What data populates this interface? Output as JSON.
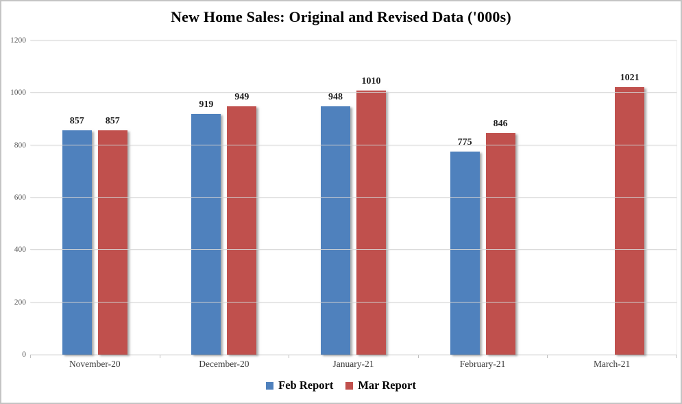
{
  "chart_data": {
    "type": "bar",
    "title": "New Home Sales: Original and Revised Data ('000s)",
    "categories": [
      "November-20",
      "December-20",
      "January-21",
      "February-21",
      "March-21"
    ],
    "series": [
      {
        "name": "Feb Report",
        "color": "#4F81BD",
        "values": [
          857,
          919,
          948,
          775,
          null
        ]
      },
      {
        "name": "Mar Report",
        "color": "#C0504D",
        "values": [
          857,
          949,
          1010,
          846,
          1021
        ]
      }
    ],
    "ylim": [
      0,
      1200
    ],
    "yticks": [
      0,
      200,
      400,
      600,
      800,
      1000,
      1200
    ],
    "grid": "horizontal",
    "legend_position": "bottom",
    "data_labels": true
  },
  "colors": {
    "gridline": "#D9D9D9",
    "axis_line": "#BFBFBF",
    "y_tick_label": "#595959",
    "x_tick_label": "#3D3D3D",
    "title": "#000000",
    "frame_border": "#C4C4C4",
    "background": "#FFFFFF"
  }
}
